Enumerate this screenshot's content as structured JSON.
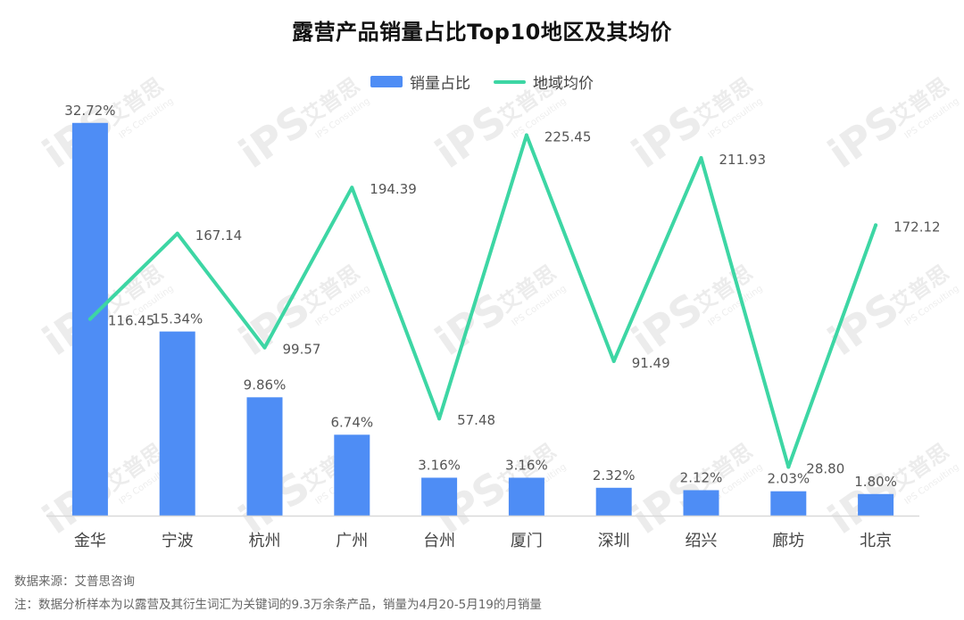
{
  "title": "露营产品销量占比Top10地区及其均价",
  "legend": {
    "bar_label": "销量占比",
    "line_label": "地域均价"
  },
  "colors": {
    "bar": "#4E8DF5",
    "line": "#3DD6A4",
    "axis": "#D9D9D9",
    "label": "#555555"
  },
  "chart_data": {
    "type": "bar+line",
    "title": "露营产品销量占比Top10地区及其均价",
    "categories": [
      "金华",
      "宁波",
      "杭州",
      "广州",
      "台州",
      "厦门",
      "深圳",
      "绍兴",
      "廊坊",
      "北京"
    ],
    "series": [
      {
        "name": "销量占比",
        "type": "bar",
        "values": [
          32.72,
          15.34,
          9.86,
          6.74,
          3.16,
          3.16,
          2.32,
          2.12,
          2.03,
          1.8
        ],
        "labels": [
          "32.72%",
          "15.34%",
          "9.86%",
          "6.74%",
          "3.16%",
          "3.16%",
          "2.32%",
          "2.12%",
          "2.03%",
          "1.80%"
        ]
      },
      {
        "name": "地域均价",
        "type": "line",
        "values": [
          116.45,
          167.14,
          99.57,
          194.39,
          57.48,
          225.45,
          91.49,
          211.93,
          28.8,
          172.12
        ],
        "labels": [
          "116.45",
          "167.14",
          "99.57",
          "194.39",
          "57.48",
          "225.45",
          "91.49",
          "211.93",
          "28.80",
          "172.12"
        ]
      }
    ],
    "ylim_bar": [
      0,
      33
    ],
    "ylim_line": [
      0,
      250
    ],
    "grid": false,
    "legend_position": "top-center"
  },
  "footer": {
    "source": "数据来源：艾普思咨询",
    "note": "注：数据分析样本为以露营及其衍生词汇为关键词的9.3万余条产品，销量为4月20-5月19的月销量"
  },
  "watermark": {
    "brand": "iPS",
    "cn": "艾普思",
    "en": "IPS Consulting"
  }
}
